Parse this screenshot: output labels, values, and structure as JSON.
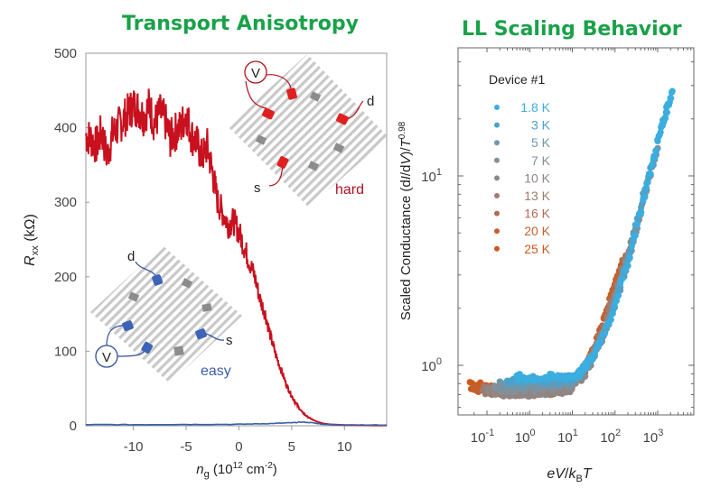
{
  "titles": {
    "left": "Transport Anisotropy",
    "right": "LL Scaling Behavior"
  },
  "colors": {
    "title_green": "#1aa14a",
    "hard_red": "#c8101e",
    "easy_blue": "#3b5fa8",
    "device_gray": "#9a9a9a"
  },
  "chart_data": [
    {
      "type": "line",
      "title": "Transport Anisotropy",
      "xlabel": "n_g (10^12 cm^-2)",
      "xlabel_parts": {
        "var": "n",
        "sub": "g",
        "rest": " (10",
        "sup": "12",
        "unit": " cm",
        "sup2": "-2",
        "close": ")"
      },
      "ylabel": "R_xx (kΩ)",
      "ylabel_parts": {
        "var": "R",
        "sub": "xx",
        "rest": " (kΩ)"
      },
      "xlim": [
        -14.5,
        14
      ],
      "ylim": [
        0,
        500
      ],
      "xticks": [
        -10,
        -5,
        0,
        5,
        10
      ],
      "yticks": [
        0,
        100,
        200,
        300,
        400,
        500
      ],
      "grid": false,
      "annotations": {
        "hard": "hard",
        "easy": "easy",
        "voltmeter": "V",
        "drain": "d",
        "source": "s"
      },
      "series": [
        {
          "name": "hard",
          "color": "#c8101e",
          "x": [
            -14.5,
            -14,
            -13.5,
            -13,
            -12.5,
            -12,
            -11.5,
            -11,
            -10.5,
            -10,
            -9.5,
            -9,
            -8.5,
            -8,
            -7.5,
            -7,
            -6.5,
            -6,
            -5.5,
            -5,
            -4.5,
            -4,
            -3.5,
            -3,
            -2.5,
            -2,
            -1.5,
            -1,
            -0.5,
            0,
            0.5,
            1,
            1.5,
            2,
            2.5,
            3,
            3.5,
            4,
            4.5,
            5,
            5.5,
            6,
            6.5,
            7,
            7.5,
            8,
            8.5,
            9,
            10,
            11,
            12,
            13,
            14
          ],
          "values": [
            390,
            385,
            375,
            395,
            360,
            390,
            400,
            410,
            420,
            430,
            425,
            415,
            430,
            405,
            420,
            410,
            385,
            395,
            400,
            420,
            390,
            380,
            360,
            375,
            340,
            300,
            285,
            270,
            275,
            260,
            240,
            220,
            200,
            170,
            150,
            120,
            95,
            75,
            55,
            40,
            28,
            18,
            12,
            8,
            5,
            3,
            2,
            1.5,
            1,
            0.8,
            0.6,
            0.5,
            0.5
          ]
        },
        {
          "name": "easy",
          "color": "#3b5fa8",
          "x": [
            -14.5,
            -10,
            -5,
            0,
            3,
            5,
            6,
            7,
            8,
            10,
            14
          ],
          "values": [
            1.5,
            1.5,
            1.8,
            2,
            3,
            4,
            5,
            4,
            2,
            1,
            1
          ]
        }
      ]
    },
    {
      "type": "scatter",
      "title": "LL Scaling Behavior",
      "xlabel": "eV/k_B T",
      "ylabel": "Scaled Conductance (dI/dV)/T^0.98",
      "xscale": "log",
      "yscale": "log",
      "xlim": [
        0.03,
        4000
      ],
      "ylim": [
        0.55,
        45
      ],
      "xticks": [
        "10^-1",
        "10^0",
        "10^1",
        "10^2",
        "10^3"
      ],
      "xtick_values": [
        0.1,
        1,
        10,
        100,
        1000
      ],
      "yticks": [
        "10^0",
        "10^1"
      ],
      "ytick_values": [
        1,
        10
      ],
      "grid": false,
      "legend": {
        "title": "Device #1",
        "position": "top-left",
        "entries": [
          {
            "label": "1.8 K",
            "color": "#3aaee0"
          },
          {
            "label": "3 K",
            "color": "#4aa2cc"
          },
          {
            "label": "5 K",
            "color": "#6e97ac"
          },
          {
            "label": "7 K",
            "color": "#83909a"
          },
          {
            "label": "10 K",
            "color": "#8f8686"
          },
          {
            "label": "13 K",
            "color": "#a07b6e"
          },
          {
            "label": "16 K",
            "color": "#b06d52"
          },
          {
            "label": "20 K",
            "color": "#c2602e"
          },
          {
            "label": "25 K",
            "color": "#cc5a1e"
          }
        ]
      },
      "series": [
        {
          "name": "25 K",
          "color": "#cc5a1e",
          "x": [
            0.04,
            0.07,
            0.12,
            0.2,
            0.4,
            1,
            3,
            8,
            20,
            40,
            80,
            150
          ],
          "values": [
            0.78,
            0.78,
            0.75,
            0.73,
            0.72,
            0.72,
            0.73,
            0.75,
            0.95,
            1.4,
            2.3,
            3.6
          ]
        },
        {
          "name": "20 K",
          "color": "#c2602e",
          "x": [
            0.05,
            0.1,
            0.2,
            0.5,
            1,
            3,
            8,
            20,
            40,
            80,
            180
          ],
          "values": [
            0.76,
            0.75,
            0.74,
            0.72,
            0.72,
            0.73,
            0.75,
            0.95,
            1.4,
            2.3,
            3.8
          ]
        },
        {
          "name": "13 K",
          "color": "#a07b6e",
          "x": [
            0.08,
            0.15,
            0.3,
            0.8,
            2,
            5,
            12,
            30,
            60,
            120,
            250
          ],
          "values": [
            0.74,
            0.73,
            0.72,
            0.72,
            0.72,
            0.74,
            0.82,
            1.15,
            1.7,
            2.8,
            4.6
          ]
        },
        {
          "name": "10 K",
          "color": "#8f8686",
          "x": [
            0.1,
            0.2,
            0.5,
            1,
            3,
            8,
            20,
            50,
            100,
            200,
            400
          ],
          "values": [
            0.74,
            0.72,
            0.71,
            0.71,
            0.72,
            0.74,
            0.9,
            1.4,
            2.2,
            3.8,
            6.5
          ]
        },
        {
          "name": "7 K",
          "color": "#83909a",
          "x": [
            0.15,
            0.4,
            1,
            3,
            8,
            20,
            50,
            100,
            250,
            500,
            800
          ],
          "values": [
            0.76,
            0.75,
            0.76,
            0.77,
            0.8,
            0.95,
            1.4,
            2.2,
            4.2,
            8.0,
            12.0
          ]
        },
        {
          "name": "5 K",
          "color": "#6e97ac",
          "x": [
            0.2,
            0.5,
            1,
            3,
            10,
            30,
            80,
            200,
            500,
            1000
          ],
          "values": [
            0.8,
            0.8,
            0.8,
            0.8,
            0.82,
            1.1,
            1.8,
            3.5,
            8.0,
            14.0
          ]
        },
        {
          "name": "3 K",
          "color": "#4aa2cc",
          "x": [
            0.3,
            0.8,
            2,
            5,
            12,
            30,
            80,
            200,
            500,
            1200,
            1800
          ],
          "values": [
            0.83,
            0.84,
            0.84,
            0.84,
            0.86,
            1.1,
            1.8,
            3.6,
            8.5,
            18.0,
            24.0
          ]
        },
        {
          "name": "1.8 K",
          "color": "#3aaee0",
          "x": [
            0.5,
            1,
            3,
            8,
            15,
            30,
            80,
            200,
            500,
            1000,
            1600,
            2200
          ],
          "values": [
            0.86,
            0.86,
            0.86,
            0.87,
            0.9,
            1.1,
            1.8,
            3.5,
            8.0,
            15.0,
            22.0,
            28.0
          ]
        }
      ]
    }
  ]
}
